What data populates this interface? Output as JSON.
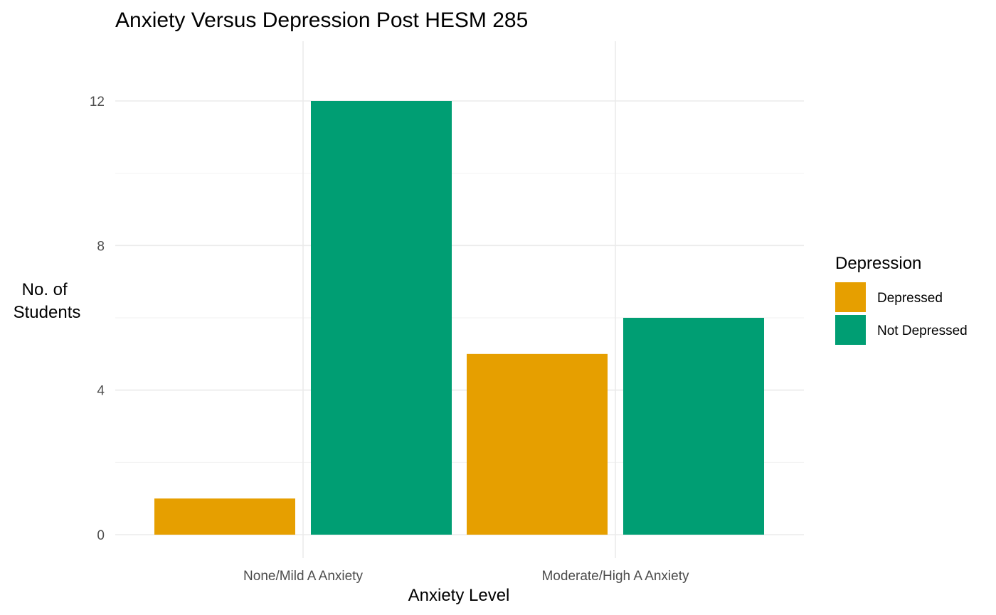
{
  "chart_data": {
    "type": "bar",
    "title": "Anxiety Versus Depression Post HESM 285",
    "xlabel": "Anxiety Level",
    "ylabel": [
      "No. of",
      "Students"
    ],
    "categories": [
      "None/Mild A Anxiety",
      "Moderate/High A Anxiety"
    ],
    "series": [
      {
        "name": "Depressed",
        "values": [
          1,
          5
        ],
        "color": "#E69F00"
      },
      {
        "name": "Not Depressed",
        "values": [
          12,
          6
        ],
        "color": "#009E73"
      }
    ],
    "ylim": [
      0,
      13.2
    ],
    "yticks": [
      0,
      4,
      8,
      12
    ],
    "grid": true,
    "legend": {
      "title": "Depression",
      "position": "right"
    }
  }
}
